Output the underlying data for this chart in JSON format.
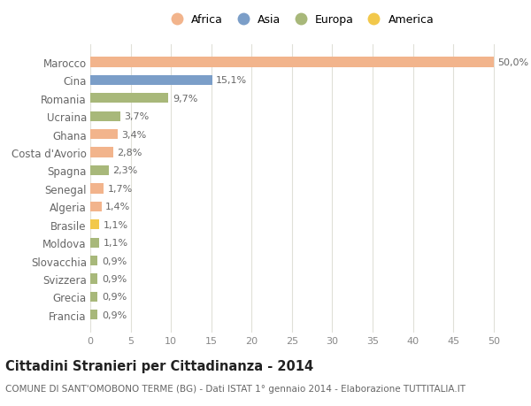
{
  "categories": [
    "Francia",
    "Grecia",
    "Svizzera",
    "Slovacchia",
    "Moldova",
    "Brasile",
    "Algeria",
    "Senegal",
    "Spagna",
    "Costa d'Avorio",
    "Ghana",
    "Ucraina",
    "Romania",
    "Cina",
    "Marocco"
  ],
  "values": [
    0.9,
    0.9,
    0.9,
    0.9,
    1.1,
    1.1,
    1.4,
    1.7,
    2.3,
    2.8,
    3.4,
    3.7,
    9.7,
    15.1,
    50.0
  ],
  "labels": [
    "0,9%",
    "0,9%",
    "0,9%",
    "0,9%",
    "1,1%",
    "1,1%",
    "1,4%",
    "1,7%",
    "2,3%",
    "2,8%",
    "3,4%",
    "3,7%",
    "9,7%",
    "15,1%",
    "50,0%"
  ],
  "continents": [
    "Europa",
    "Europa",
    "Europa",
    "Europa",
    "Europa",
    "America",
    "Africa",
    "Africa",
    "Europa",
    "Africa",
    "Africa",
    "Europa",
    "Europa",
    "Asia",
    "Africa"
  ],
  "colors": {
    "Africa": "#F2B48C",
    "Asia": "#7B9EC8",
    "Europa": "#A8B87A",
    "America": "#F2C84B"
  },
  "legend_order": [
    "Africa",
    "Asia",
    "Europa",
    "America"
  ],
  "xlim": [
    0,
    52
  ],
  "xticks": [
    0,
    5,
    10,
    15,
    20,
    25,
    30,
    35,
    40,
    45,
    50
  ],
  "title": "Cittadini Stranieri per Cittadinanza - 2014",
  "subtitle": "COMUNE DI SANT'OMOBONO TERME (BG) - Dati ISTAT 1° gennaio 2014 - Elaborazione TUTTITALIA.IT",
  "bg_color": "#ffffff",
  "grid_color": "#e0e0d8",
  "bar_height": 0.55,
  "label_fontsize": 8,
  "ytick_fontsize": 8.5,
  "xtick_fontsize": 8,
  "title_fontsize": 10.5,
  "subtitle_fontsize": 7.5,
  "legend_fontsize": 9
}
